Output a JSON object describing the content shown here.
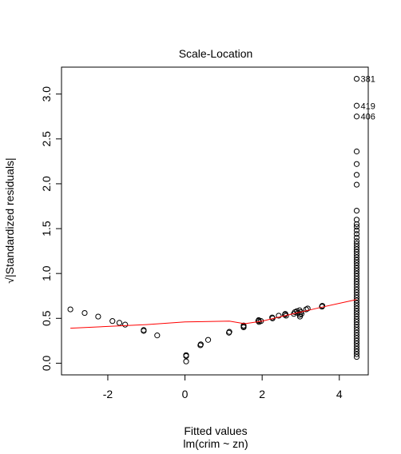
{
  "chart_data": {
    "type": "scatter",
    "title": "Scale-Location",
    "xlabel": "Fitted values",
    "subtitle": "lm(crim ~ zn)",
    "ylabel": "√|Standardized residuals|",
    "xlim": [
      -3.2,
      4.75
    ],
    "ylim": [
      -0.13,
      3.3
    ],
    "x_ticks": [
      -2,
      0,
      2,
      4
    ],
    "x_tick_labels": [
      "-2",
      "0",
      "2",
      "4"
    ],
    "y_ticks": [
      0.0,
      0.5,
      1.0,
      1.5,
      2.0,
      2.5,
      3.0
    ],
    "y_tick_labels": [
      "0.0",
      "0.5",
      "1.0",
      "1.5",
      "2.0",
      "2.5",
      "3.0"
    ],
    "grid": false,
    "point_color": "#000000",
    "smoother_color": "#ff0000",
    "points": [
      [
        -2.97,
        0.6
      ],
      [
        -2.6,
        0.56
      ],
      [
        -2.25,
        0.52
      ],
      [
        -1.88,
        0.47
      ],
      [
        -1.7,
        0.45
      ],
      [
        -1.55,
        0.43
      ],
      [
        -1.07,
        0.37
      ],
      [
        -1.07,
        0.36
      ],
      [
        -0.72,
        0.31
      ],
      [
        0.03,
        0.09
      ],
      [
        0.03,
        0.08
      ],
      [
        0.03,
        0.02
      ],
      [
        0.41,
        0.21
      ],
      [
        0.4,
        0.2
      ],
      [
        0.6,
        0.26
      ],
      [
        1.15,
        0.35
      ],
      [
        1.14,
        0.34
      ],
      [
        1.52,
        0.42
      ],
      [
        1.52,
        0.41
      ],
      [
        1.52,
        0.4
      ],
      [
        1.9,
        0.47
      ],
      [
        1.91,
        0.48
      ],
      [
        1.97,
        0.47
      ],
      [
        1.92,
        0.46
      ],
      [
        2.26,
        0.51
      ],
      [
        2.27,
        0.5
      ],
      [
        2.43,
        0.53
      ],
      [
        2.59,
        0.54
      ],
      [
        2.6,
        0.55
      ],
      [
        2.62,
        0.53
      ],
      [
        2.82,
        0.55
      ],
      [
        2.85,
        0.57
      ],
      [
        2.9,
        0.58
      ],
      [
        2.93,
        0.56
      ],
      [
        2.97,
        0.59
      ],
      [
        2.98,
        0.52
      ],
      [
        2.98,
        0.54
      ],
      [
        3.0,
        0.57
      ],
      [
        3.02,
        0.55
      ],
      [
        3.14,
        0.6
      ],
      [
        3.18,
        0.61
      ],
      [
        3.55,
        0.63
      ],
      [
        3.56,
        0.64
      ],
      [
        4.45,
        3.17
      ],
      [
        4.45,
        2.87
      ],
      [
        4.45,
        2.75
      ],
      [
        4.45,
        2.36
      ],
      [
        4.45,
        2.22
      ],
      [
        4.45,
        2.1
      ],
      [
        4.45,
        1.99
      ],
      [
        4.45,
        1.7
      ],
      [
        4.45,
        1.6
      ],
      [
        4.45,
        1.55
      ],
      [
        4.45,
        1.52
      ],
      [
        4.45,
        1.48
      ],
      [
        4.45,
        1.44
      ],
      [
        4.45,
        1.4
      ],
      [
        4.45,
        1.36
      ],
      [
        4.45,
        1.33
      ],
      [
        4.45,
        1.3
      ],
      [
        4.45,
        1.27
      ],
      [
        4.45,
        1.24
      ],
      [
        4.45,
        1.21
      ],
      [
        4.45,
        1.18
      ],
      [
        4.45,
        1.15
      ],
      [
        4.45,
        1.12
      ],
      [
        4.45,
        1.09
      ],
      [
        4.45,
        1.06
      ],
      [
        4.45,
        1.03
      ],
      [
        4.45,
        1.0
      ],
      [
        4.45,
        0.97
      ],
      [
        4.45,
        0.94
      ],
      [
        4.45,
        0.91
      ],
      [
        4.45,
        0.88
      ],
      [
        4.45,
        0.85
      ],
      [
        4.45,
        0.82
      ],
      [
        4.45,
        0.79
      ],
      [
        4.45,
        0.76
      ],
      [
        4.45,
        0.73
      ],
      [
        4.45,
        0.7
      ],
      [
        4.45,
        0.67
      ],
      [
        4.45,
        0.64
      ],
      [
        4.45,
        0.61
      ],
      [
        4.45,
        0.58
      ],
      [
        4.45,
        0.55
      ],
      [
        4.45,
        0.52
      ],
      [
        4.45,
        0.49
      ],
      [
        4.45,
        0.46
      ],
      [
        4.45,
        0.43
      ],
      [
        4.45,
        0.4
      ],
      [
        4.45,
        0.37
      ],
      [
        4.45,
        0.34
      ],
      [
        4.45,
        0.31
      ],
      [
        4.45,
        0.28
      ],
      [
        4.45,
        0.25
      ],
      [
        4.45,
        0.22
      ],
      [
        4.45,
        0.19
      ],
      [
        4.45,
        0.16
      ],
      [
        4.45,
        0.13
      ],
      [
        4.45,
        0.1
      ],
      [
        4.45,
        0.07
      ]
    ],
    "labeled_points": [
      {
        "label": "381",
        "x": 4.45,
        "y": 3.17
      },
      {
        "label": "419",
        "x": 4.45,
        "y": 2.87
      },
      {
        "label": "406",
        "x": 4.45,
        "y": 2.75
      }
    ],
    "smoother": [
      [
        -2.97,
        0.39
      ],
      [
        -2.0,
        0.41
      ],
      [
        -1.0,
        0.43
      ],
      [
        0.0,
        0.46
      ],
      [
        1.15,
        0.47
      ],
      [
        1.55,
        0.44
      ],
      [
        2.0,
        0.47
      ],
      [
        2.5,
        0.52
      ],
      [
        3.0,
        0.57
      ],
      [
        3.5,
        0.62
      ],
      [
        4.45,
        0.71
      ]
    ]
  }
}
